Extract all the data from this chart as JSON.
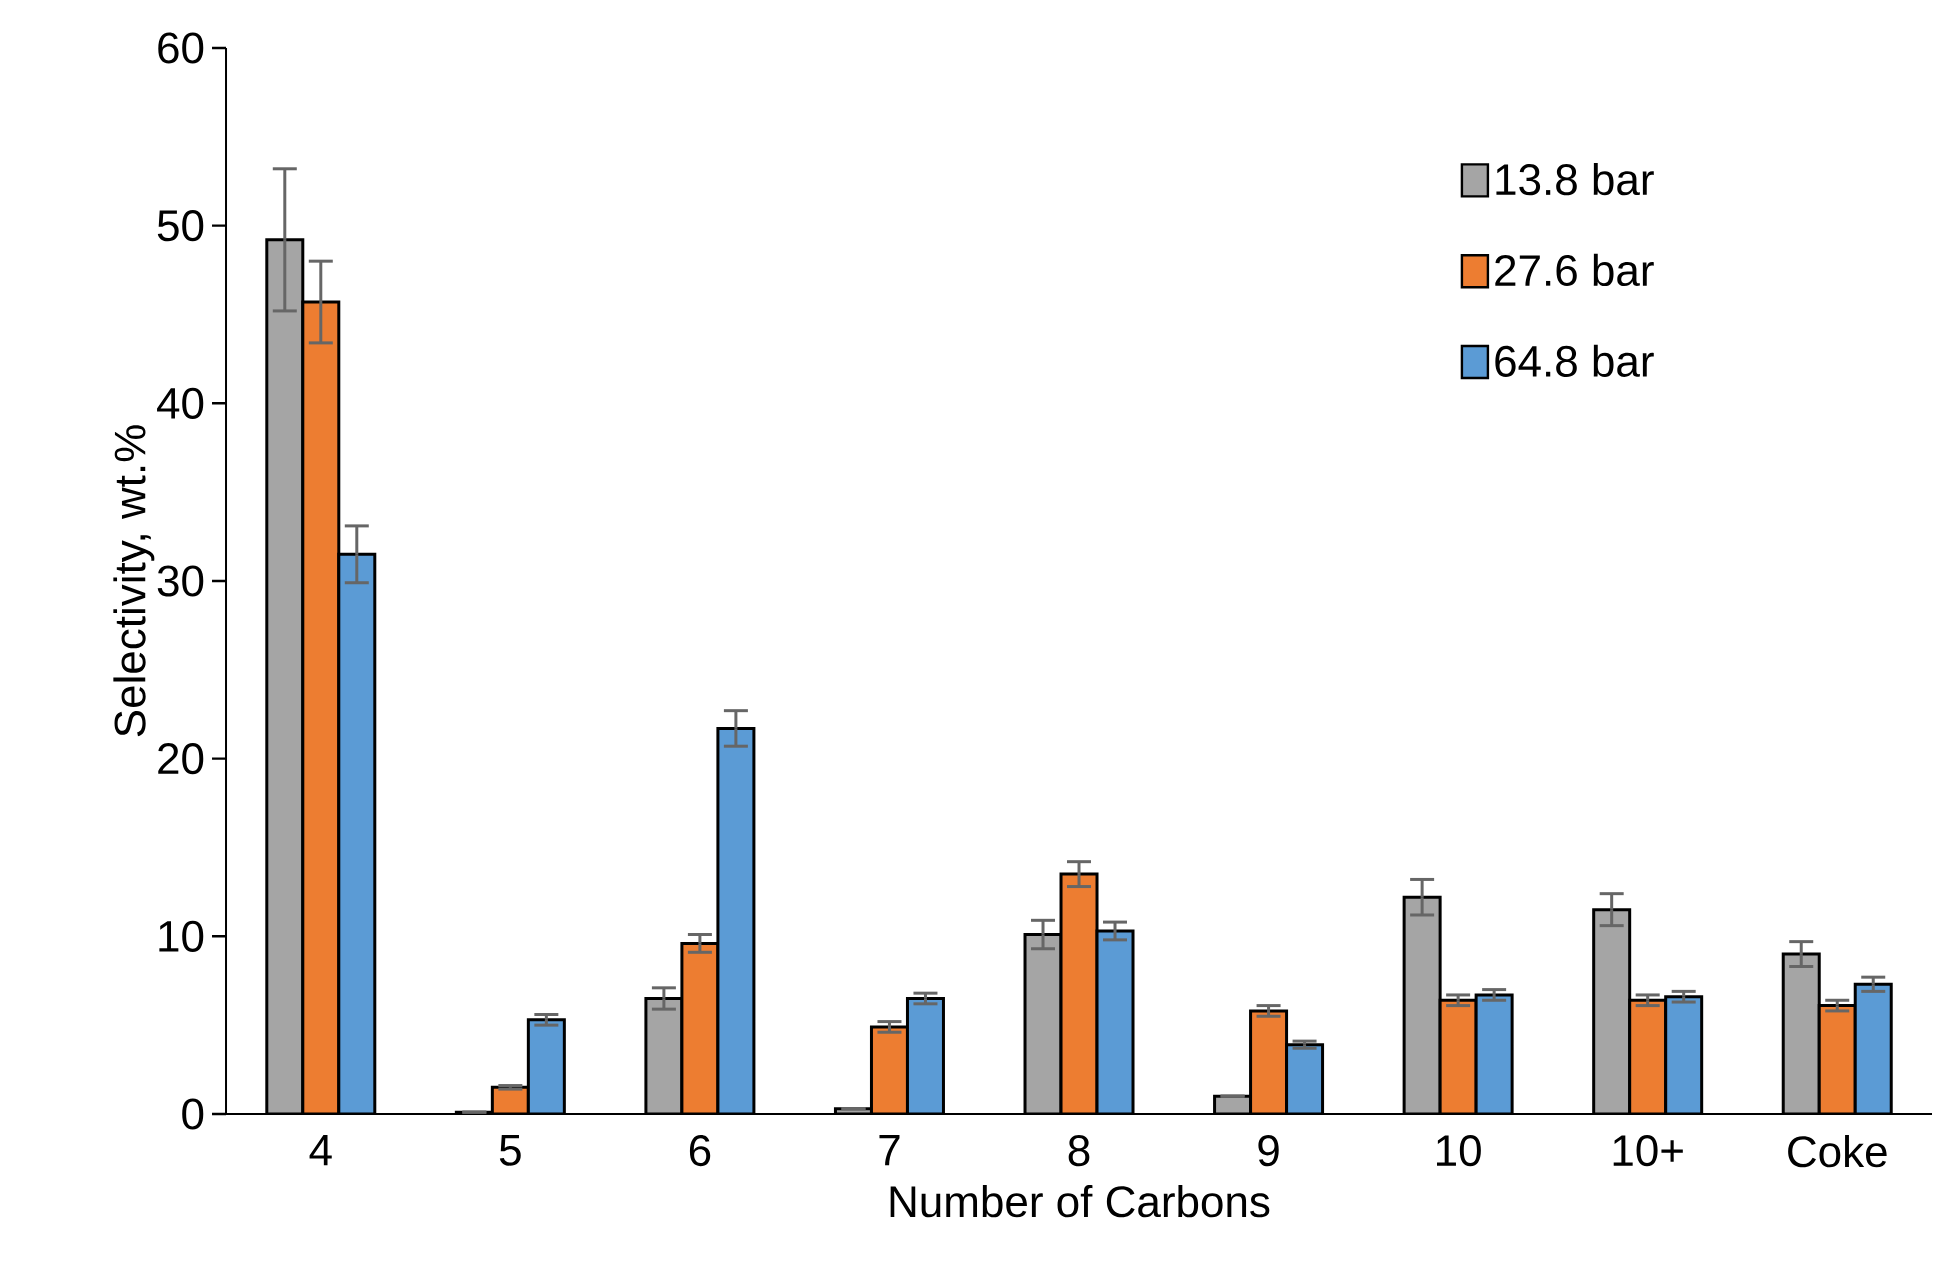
{
  "chart_data": {
    "type": "bar",
    "xlabel": "Number of Carbons",
    "ylabel": "Selectivity, wt.%",
    "categories": [
      "4",
      "5",
      "6",
      "7",
      "8",
      "9",
      "10",
      "10+",
      "Coke"
    ],
    "series": [
      {
        "name": "13.8 bar",
        "color": "#a5a5a5",
        "values": [
          49.2,
          0.1,
          6.5,
          0.3,
          10.1,
          1.0,
          12.2,
          11.5,
          9.0
        ],
        "errors": [
          4.0,
          null,
          0.6,
          null,
          0.8,
          null,
          1.0,
          0.9,
          0.7
        ]
      },
      {
        "name": "27.6 bar",
        "color": "#ed7d31",
        "values": [
          45.7,
          1.5,
          9.6,
          4.9,
          13.5,
          5.8,
          6.4,
          6.4,
          6.1
        ],
        "errors": [
          2.3,
          0.1,
          0.5,
          0.3,
          0.7,
          0.3,
          0.3,
          0.3,
          0.3
        ]
      },
      {
        "name": "64.8 bar",
        "color": "#5b9bd5",
        "values": [
          31.5,
          5.3,
          21.7,
          6.5,
          10.3,
          3.9,
          6.7,
          6.6,
          7.3
        ],
        "errors": [
          1.6,
          0.3,
          1.0,
          0.3,
          0.5,
          0.2,
          0.3,
          0.3,
          0.4
        ]
      }
    ],
    "ylim": [
      0,
      60
    ],
    "yticks": [
      0,
      10,
      20,
      30,
      40,
      50,
      60
    ],
    "legend": "top right"
  }
}
